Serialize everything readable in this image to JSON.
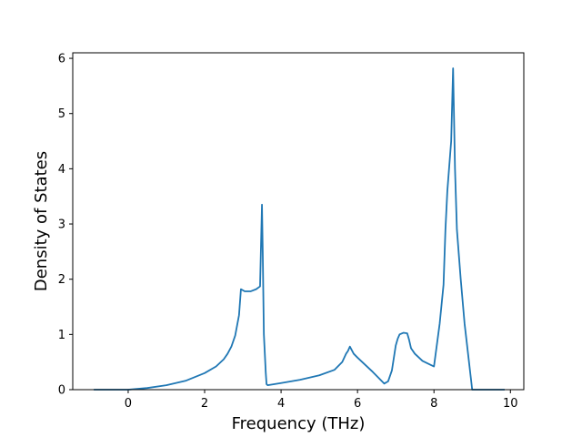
{
  "chart_data": {
    "type": "line",
    "title": "",
    "xlabel": "Frequency (THz)",
    "ylabel": "Density of States",
    "xlim": [
      -1.45,
      10.35
    ],
    "ylim": [
      0,
      6.1
    ],
    "xticks": [
      0,
      2,
      4,
      6,
      8,
      10
    ],
    "yticks": [
      0,
      1,
      2,
      3,
      4,
      5,
      6
    ],
    "grid": false,
    "legend": "none",
    "colors": {
      "line": "#1f77b4",
      "axes": "#000000"
    },
    "series": [
      {
        "name": "",
        "x": [
          -0.9,
          -0.5,
          0.0,
          0.5,
          1.0,
          1.5,
          2.0,
          2.3,
          2.5,
          2.6,
          2.7,
          2.8,
          2.9,
          2.95,
          3.05,
          3.2,
          3.35,
          3.45,
          3.5,
          3.52,
          3.55,
          3.6,
          3.62,
          3.65,
          4.0,
          4.5,
          5.0,
          5.4,
          5.6,
          5.7,
          5.75,
          5.8,
          5.9,
          6.0,
          6.2,
          6.4,
          6.6,
          6.7,
          6.8,
          6.9,
          7.0,
          7.05,
          7.1,
          7.2,
          7.3,
          7.35,
          7.4,
          7.5,
          7.7,
          8.0,
          8.15,
          8.25,
          8.3,
          8.35,
          8.45,
          8.5,
          8.55,
          8.6,
          8.7,
          8.8,
          8.85,
          8.9,
          8.95,
          9.0,
          9.5,
          9.85
        ],
        "y": [
          0.0,
          0.0,
          0.0,
          0.03,
          0.08,
          0.16,
          0.3,
          0.42,
          0.55,
          0.65,
          0.78,
          0.98,
          1.35,
          1.82,
          1.78,
          1.78,
          1.82,
          1.87,
          3.35,
          2.5,
          1.0,
          0.3,
          0.1,
          0.08,
          0.12,
          0.18,
          0.26,
          0.36,
          0.5,
          0.65,
          0.7,
          0.78,
          0.65,
          0.58,
          0.45,
          0.32,
          0.18,
          0.11,
          0.15,
          0.35,
          0.8,
          0.92,
          1.0,
          1.03,
          1.02,
          0.9,
          0.75,
          0.65,
          0.52,
          0.42,
          1.2,
          1.9,
          2.9,
          3.6,
          4.5,
          5.82,
          4.0,
          2.9,
          2.0,
          1.2,
          0.9,
          0.6,
          0.3,
          0.0,
          0.0,
          0.0
        ]
      }
    ]
  }
}
